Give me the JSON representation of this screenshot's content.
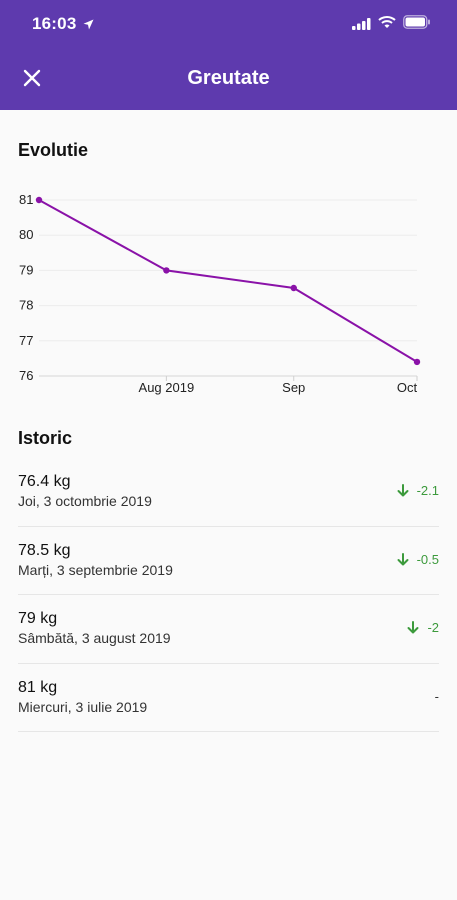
{
  "status": {
    "time": "16:03"
  },
  "header": {
    "title": "Greutate"
  },
  "evolution": {
    "title": "Evolutie"
  },
  "chart_data": {
    "type": "line",
    "x": [
      "2019-07-03",
      "2019-08-03",
      "2019-09-03",
      "2019-10-03"
    ],
    "x_tick_labels": [
      "Aug 2019",
      "Sep",
      "Oct"
    ],
    "series": [
      {
        "values": [
          81,
          79,
          78.5,
          76.4
        ]
      }
    ],
    "y_ticks": [
      76,
      77,
      78,
      79,
      80,
      81
    ],
    "ylim": [
      76,
      81
    ],
    "grid": true,
    "color": "#8a12a8"
  },
  "history": {
    "title": "Istoric",
    "entries": [
      {
        "weight": "76.4 kg",
        "date": "Joi, 3 octombrie 2019",
        "delta": "-2.1",
        "trend": "down"
      },
      {
        "weight": "78.5 kg",
        "date": "Marți, 3 septembrie 2019",
        "delta": "-0.5",
        "trend": "down"
      },
      {
        "weight": "79 kg",
        "date": "Sâmbătă, 3 august 2019",
        "delta": "-2",
        "trend": "down"
      },
      {
        "weight": "81 kg",
        "date": "Miercuri, 3 iulie 2019",
        "delta": "-",
        "trend": "none"
      }
    ]
  },
  "colors": {
    "header_bg": "#5e3aae",
    "positive_change": "#3c9a3c",
    "line": "#8a12a8"
  }
}
